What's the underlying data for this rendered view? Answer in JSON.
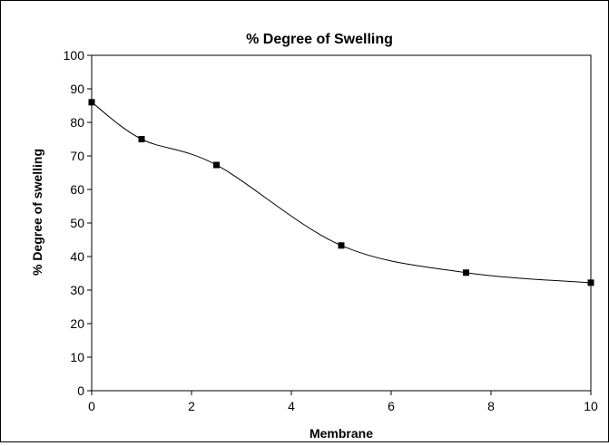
{
  "chart_data": {
    "type": "line",
    "title": "% Degree of Swelling",
    "xlabel": "Membrane",
    "ylabel": "% Degree of swelling",
    "xlim": [
      0,
      10
    ],
    "ylim": [
      0,
      100
    ],
    "x_ticks": [
      "0",
      "2",
      "4",
      "6",
      "8",
      "10"
    ],
    "y_ticks": [
      "0",
      "10",
      "20",
      "30",
      "40",
      "50",
      "60",
      "70",
      "80",
      "90",
      "100"
    ],
    "grid": false,
    "legend": "none",
    "series": [
      {
        "x": [
          0,
          1,
          2.5,
          5,
          7.5,
          10
        ],
        "y": [
          86,
          75,
          67.3,
          43.3,
          35.2,
          32.2
        ],
        "color": "#000000",
        "marker": "square",
        "smooth": true
      }
    ]
  }
}
